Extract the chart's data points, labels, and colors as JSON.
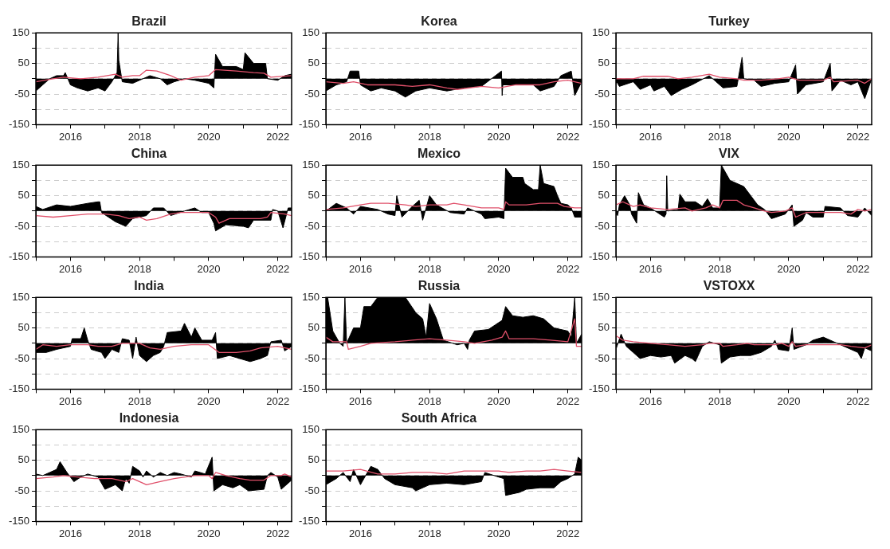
{
  "chart_data": [
    {
      "type": "area",
      "title": "Brazil",
      "xlim": [
        2015,
        2022.4
      ],
      "xticks": [
        {
          "value": 2015,
          "label": null
        },
        2016,
        {
          "value": 2017,
          "label": null
        },
        2018,
        {
          "value": 2019,
          "label": null
        },
        2020,
        {
          "value": 2021,
          "label": null
        },
        2022
      ],
      "ylim": [
        -150,
        150
      ],
      "yticks": [
        -150,
        {
          "value": -100,
          "label": null
        },
        -50,
        {
          "value": 0,
          "label": null
        },
        50,
        {
          "value": 100,
          "label": null
        },
        150
      ],
      "grid": "y",
      "marker": "none",
      "series": [
        {
          "color": "#000000",
          "x": [
            2015,
            2015.2,
            2015.4,
            2015.6,
            2015.8,
            2015.85,
            2016,
            2016.2,
            2016.5,
            2016.8,
            2017,
            2017.2,
            2017.35,
            2017.38,
            2017.4,
            2017.5,
            2017.8,
            2018,
            2018.3,
            2018.6,
            2018.8,
            2019,
            2019.3,
            2019.6,
            2020,
            2020.15,
            2020.2,
            2020.4,
            2020.8,
            2021,
            2021.05,
            2021.3,
            2021.65,
            2021.7,
            2022,
            2022.2,
            2022.4
          ],
          "values": [
            -40,
            -20,
            0,
            10,
            10,
            20,
            -20,
            -30,
            -40,
            -30,
            -40,
            -10,
            20,
            150,
            60,
            -10,
            -15,
            -5,
            10,
            0,
            -20,
            -10,
            0,
            -5,
            -15,
            -30,
            80,
            40,
            40,
            30,
            85,
            50,
            50,
            0,
            -5,
            10,
            15
          ]
        },
        {
          "type": "line",
          "color": "#e0506a",
          "x": [
            2015,
            2015.5,
            2015.8,
            2016.3,
            2016.8,
            2017.3,
            2017.5,
            2017.8,
            2018,
            2018.2,
            2018.5,
            2018.9,
            2019.2,
            2019.6,
            2020,
            2020.2,
            2020.8,
            2021.3,
            2021.6,
            2021.8,
            2022.4
          ],
          "values": [
            -10,
            0,
            5,
            0,
            5,
            15,
            5,
            10,
            10,
            28,
            25,
            10,
            -5,
            5,
            10,
            30,
            25,
            20,
            18,
            5,
            10
          ]
        }
      ]
    },
    {
      "type": "area",
      "title": "Korea",
      "xlim": [
        2015,
        2022.4
      ],
      "xticks": [
        {
          "value": 2015,
          "label": null
        },
        2016,
        {
          "value": 2017,
          "label": null
        },
        2018,
        {
          "value": 2019,
          "label": null
        },
        2020,
        {
          "value": 2021,
          "label": null
        },
        2022
      ],
      "ylim": [
        -150,
        150
      ],
      "yticks": [
        -150,
        {
          "value": -100,
          "label": null
        },
        -50,
        {
          "value": 0,
          "label": null
        },
        50,
        {
          "value": 100,
          "label": null
        },
        150
      ],
      "grid": "y",
      "marker": "none",
      "series": [
        {
          "color": "#000000",
          "x": [
            2015,
            2015.3,
            2015.6,
            2015.7,
            2015.95,
            2016,
            2016.3,
            2016.6,
            2017,
            2017.3,
            2017.6,
            2018,
            2018.5,
            2019,
            2019.5,
            2020.08,
            2020.1,
            2020.12,
            2020.5,
            2021,
            2021.2,
            2021.6,
            2021.8,
            2022.1,
            2022.2,
            2022.4
          ],
          "values": [
            -40,
            -20,
            -10,
            25,
            25,
            -20,
            -40,
            -30,
            -40,
            -60,
            -40,
            -30,
            -40,
            -30,
            -25,
            25,
            -55,
            -20,
            -20,
            -20,
            -40,
            -25,
            10,
            25,
            -55,
            -10
          ]
        },
        {
          "type": "line",
          "color": "#e0506a",
          "x": [
            2015,
            2015.5,
            2015.8,
            2016.2,
            2017,
            2017.5,
            2018,
            2018.5,
            2018.8,
            2019.5,
            2020,
            2020.5,
            2021.2,
            2021.6,
            2022,
            2022.4
          ],
          "values": [
            -10,
            -15,
            -10,
            -20,
            -20,
            -25,
            -20,
            -30,
            -35,
            -25,
            -30,
            -20,
            -20,
            -10,
            -5,
            -15
          ]
        }
      ]
    },
    {
      "type": "area",
      "title": "Turkey",
      "xlim": [
        2015,
        2022.4
      ],
      "xticks": [
        {
          "value": 2015,
          "label": null
        },
        2016,
        {
          "value": 2017,
          "label": null
        },
        2018,
        {
          "value": 2019,
          "label": null
        },
        2020,
        {
          "value": 2021,
          "label": null
        },
        2022
      ],
      "ylim": [
        -150,
        150
      ],
      "yticks": [
        -150,
        {
          "value": -100,
          "label": null
        },
        -50,
        {
          "value": 0,
          "label": null
        },
        50,
        {
          "value": 100,
          "label": null
        },
        150
      ],
      "grid": "y",
      "marker": "none",
      "series": [
        {
          "color": "#000000",
          "x": [
            2015,
            2015.1,
            2015.5,
            2015.7,
            2016,
            2016.1,
            2016.4,
            2016.6,
            2016.9,
            2017.2,
            2017.7,
            2017.9,
            2018.1,
            2018.5,
            2018.65,
            2018.7,
            2019,
            2019.2,
            2019.6,
            2020,
            2020.2,
            2020.25,
            2020.5,
            2021,
            2021.2,
            2021.25,
            2021.5,
            2021.8,
            2022,
            2022.2,
            2022.4
          ],
          "values": [
            -5,
            -25,
            -10,
            -35,
            -20,
            -40,
            -25,
            -55,
            -35,
            -20,
            10,
            -10,
            -30,
            -25,
            70,
            0,
            -5,
            -25,
            -15,
            -10,
            45,
            -50,
            -20,
            -10,
            50,
            -40,
            -5,
            -20,
            -10,
            -65,
            0
          ]
        },
        {
          "type": "line",
          "color": "#e0506a",
          "x": [
            2015,
            2015.5,
            2015.8,
            2016.5,
            2016.8,
            2017.2,
            2017.7,
            2018,
            2018.5,
            2018.7,
            2019.2,
            2019.7,
            2020,
            2020.3,
            2021,
            2021.2,
            2021.3,
            2022,
            2022.2,
            2022.4
          ],
          "values": [
            0,
            0,
            8,
            8,
            0,
            5,
            15,
            5,
            0,
            -5,
            -5,
            0,
            5,
            -5,
            -5,
            5,
            -10,
            -5,
            -15,
            0
          ]
        }
      ]
    },
    {
      "type": "area",
      "title": "China",
      "xlim": [
        2015,
        2022.4
      ],
      "xticks": [
        {
          "value": 2015,
          "label": null
        },
        2016,
        {
          "value": 2017,
          "label": null
        },
        2018,
        {
          "value": 2019,
          "label": null
        },
        2020,
        {
          "value": 2021,
          "label": null
        },
        2022
      ],
      "ylim": [
        -150,
        150
      ],
      "yticks": [
        -150,
        {
          "value": -100,
          "label": null
        },
        -50,
        {
          "value": 0,
          "label": null
        },
        50,
        {
          "value": 100,
          "label": null
        },
        150
      ],
      "grid": "y",
      "marker": "none",
      "series": [
        {
          "color": "#000000",
          "x": [
            2015,
            2015.2,
            2015.6,
            2016,
            2016.5,
            2016.8,
            2016.85,
            2016.9,
            2017.1,
            2017.3,
            2017.6,
            2017.8,
            2018.2,
            2018.4,
            2018.7,
            2018.9,
            2019.3,
            2019.6,
            2019.8,
            2020,
            2020.15,
            2020.2,
            2020.5,
            2021,
            2021.15,
            2021.3,
            2021.8,
            2021.85,
            2022,
            2022.15,
            2022.3,
            2022.4
          ],
          "values": [
            15,
            5,
            20,
            15,
            25,
            30,
            30,
            -5,
            -20,
            -35,
            -50,
            -25,
            -15,
            10,
            10,
            -15,
            0,
            10,
            -5,
            -5,
            -40,
            -65,
            -45,
            -50,
            -55,
            -30,
            -30,
            5,
            0,
            -55,
            10,
            10
          ]
        },
        {
          "type": "line",
          "color": "#e0506a",
          "x": [
            2015,
            2015.5,
            2016,
            2016.5,
            2017,
            2017.4,
            2017.7,
            2018,
            2018.2,
            2018.5,
            2018.9,
            2019.2,
            2019.8,
            2020,
            2020.2,
            2020.3,
            2020.6,
            2021.5,
            2021.7,
            2021.8,
            2022.2,
            2022.4
          ],
          "values": [
            -15,
            -20,
            -15,
            -10,
            -10,
            -15,
            -25,
            -20,
            -30,
            -25,
            -10,
            -5,
            -5,
            -5,
            -20,
            -40,
            -25,
            -25,
            -20,
            -5,
            -10,
            -15
          ]
        }
      ]
    },
    {
      "type": "area",
      "title": "Mexico",
      "xlim": [
        2015,
        2022.4
      ],
      "xticks": [
        {
          "value": 2015,
          "label": null
        },
        2016,
        {
          "value": 2017,
          "label": null
        },
        2018,
        {
          "value": 2019,
          "label": null
        },
        2020,
        {
          "value": 2021,
          "label": null
        },
        2022
      ],
      "ylim": [
        -150,
        150
      ],
      "yticks": [
        -150,
        {
          "value": -100,
          "label": null
        },
        -50,
        {
          "value": 0,
          "label": null
        },
        50,
        {
          "value": 100,
          "label": null
        },
        150
      ],
      "grid": "y",
      "marker": "none",
      "series": [
        {
          "color": "#000000",
          "x": [
            2015,
            2015.3,
            2015.6,
            2015.8,
            2016,
            2016.5,
            2016.8,
            2017,
            2017.05,
            2017.2,
            2017.5,
            2017.7,
            2017.8,
            2017.9,
            2018,
            2018.2,
            2018.6,
            2019,
            2019.1,
            2019.5,
            2019.6,
            2020,
            2020.15,
            2020.2,
            2020.4,
            2020.7,
            2020.75,
            2021,
            2021.15,
            2021.2,
            2021.3,
            2021.6,
            2021.7,
            2021.8,
            2022,
            2022.1,
            2022.2,
            2022.4
          ],
          "values": [
            0,
            25,
            10,
            -10,
            15,
            5,
            -10,
            -15,
            50,
            -20,
            15,
            35,
            -30,
            10,
            50,
            20,
            -5,
            -10,
            10,
            -10,
            -25,
            -20,
            -25,
            140,
            110,
            110,
            90,
            70,
            70,
            150,
            90,
            80,
            50,
            25,
            20,
            10,
            -20,
            -20
          ]
        },
        {
          "type": "line",
          "color": "#e0506a",
          "x": [
            2015,
            2015.5,
            2016,
            2016.3,
            2016.8,
            2017.3,
            2017.6,
            2018,
            2018.5,
            2018.7,
            2019,
            2019.5,
            2020,
            2020.15,
            2020.2,
            2020.3,
            2020.8,
            2021.2,
            2021.7,
            2021.9,
            2022.2,
            2022.4
          ],
          "values": [
            5,
            10,
            20,
            25,
            25,
            20,
            15,
            20,
            20,
            25,
            20,
            10,
            10,
            5,
            30,
            20,
            20,
            25,
            25,
            15,
            10,
            10
          ]
        }
      ]
    },
    {
      "type": "area",
      "title": "VIX",
      "xlim": [
        2015,
        2022.4
      ],
      "xticks": [
        {
          "value": 2015,
          "label": null
        },
        2016,
        {
          "value": 2017,
          "label": null
        },
        2018,
        {
          "value": 2019,
          "label": null
        },
        2020,
        {
          "value": 2021,
          "label": null
        },
        2022
      ],
      "ylim": [
        -150,
        150
      ],
      "yticks": [
        -150,
        {
          "value": -100,
          "label": null
        },
        -50,
        {
          "value": 0,
          "label": null
        },
        50,
        {
          "value": 100,
          "label": null
        },
        150
      ],
      "grid": "y",
      "marker": "none",
      "series": [
        {
          "color": "#000000",
          "x": [
            2015,
            2015.05,
            2015.1,
            2015.25,
            2015.4,
            2015.45,
            2015.6,
            2015.65,
            2015.8,
            2016,
            2016.2,
            2016.4,
            2016.45,
            2016.47,
            2016.5,
            2016.8,
            2016.85,
            2017,
            2017.3,
            2017.5,
            2017.65,
            2017.8,
            2018,
            2018.05,
            2018.3,
            2018.7,
            2018.9,
            2019.1,
            2019.3,
            2019.4,
            2019.5,
            2019.9,
            2020.1,
            2020.15,
            2020.4,
            2020.5,
            2020.7,
            2021,
            2021.05,
            2021.5,
            2021.7,
            2022,
            2022.2,
            2022.4
          ],
          "values": [
            0,
            -15,
            20,
            50,
            20,
            -10,
            -40,
            60,
            20,
            10,
            -5,
            -20,
            -10,
            115,
            0,
            5,
            55,
            30,
            30,
            15,
            40,
            10,
            10,
            150,
            100,
            80,
            50,
            20,
            5,
            -10,
            -25,
            -10,
            20,
            -50,
            -30,
            -5,
            -20,
            -20,
            15,
            10,
            -15,
            -20,
            10,
            -15
          ]
        },
        {
          "type": "line",
          "color": "#e0506a",
          "x": [
            2015,
            2015.2,
            2015.5,
            2015.7,
            2016,
            2016.5,
            2017,
            2017.2,
            2017.6,
            2017.8,
            2018,
            2018.1,
            2018.5,
            2018.7,
            2019,
            2019.3,
            2019.5,
            2019.9,
            2020.1,
            2020.2,
            2020.5,
            2021,
            2021.5,
            2021.8,
            2022,
            2022.2,
            2022.4
          ],
          "values": [
            20,
            30,
            15,
            20,
            10,
            5,
            10,
            0,
            10,
            20,
            10,
            35,
            35,
            20,
            10,
            0,
            -5,
            0,
            10,
            -20,
            -5,
            -5,
            -5,
            -10,
            5,
            0,
            5
          ]
        }
      ]
    },
    {
      "type": "area",
      "title": "India",
      "xlim": [
        2015,
        2022.4
      ],
      "xticks": [
        {
          "value": 2015,
          "label": null
        },
        2016,
        {
          "value": 2017,
          "label": null
        },
        2018,
        {
          "value": 2019,
          "label": null
        },
        2020,
        {
          "value": 2021,
          "label": null
        },
        2022
      ],
      "ylim": [
        -150,
        150
      ],
      "yticks": [
        -150,
        {
          "value": -100,
          "label": null
        },
        -50,
        {
          "value": 0,
          "label": null
        },
        50,
        {
          "value": 100,
          "label": null
        },
        150
      ],
      "grid": "y",
      "marker": "none",
      "series": [
        {
          "color": "#000000",
          "x": [
            2015,
            2015.3,
            2015.6,
            2016,
            2016.05,
            2016.3,
            2016.4,
            2016.5,
            2016.6,
            2016.9,
            2017,
            2017.2,
            2017.4,
            2017.5,
            2017.7,
            2017.8,
            2017.9,
            2018,
            2018.2,
            2018.4,
            2018.6,
            2018.7,
            2018.8,
            2019.2,
            2019.3,
            2019.5,
            2019.6,
            2019.8,
            2020.1,
            2020.2,
            2020.25,
            2020.6,
            2020.9,
            2021.2,
            2021.5,
            2021.7,
            2021.8,
            2022.1,
            2022.2,
            2022.4
          ],
          "values": [
            -30,
            -30,
            -20,
            -10,
            15,
            15,
            50,
            10,
            -20,
            -30,
            -50,
            -20,
            -30,
            15,
            10,
            -50,
            20,
            -40,
            -60,
            -40,
            -30,
            -10,
            35,
            40,
            65,
            20,
            50,
            10,
            10,
            35,
            -50,
            -40,
            -50,
            -60,
            -50,
            -40,
            5,
            10,
            -25,
            -10
          ]
        },
        {
          "type": "line",
          "color": "#e0506a",
          "x": [
            2015,
            2015.2,
            2015.6,
            2016,
            2016.5,
            2016.8,
            2017.2,
            2017.5,
            2018,
            2018.3,
            2018.6,
            2019,
            2019.5,
            2020,
            2020.3,
            2020.8,
            2021.2,
            2021.5,
            2022,
            2022.4
          ],
          "values": [
            -20,
            -5,
            -10,
            -5,
            -5,
            -10,
            -10,
            0,
            0,
            -15,
            -20,
            -10,
            -5,
            -5,
            -30,
            -30,
            -25,
            -15,
            -10,
            -20
          ]
        }
      ]
    },
    {
      "type": "area",
      "title": "Russia",
      "xlim": [
        2015,
        2022.4
      ],
      "xticks": [
        {
          "value": 2015,
          "label": null
        },
        2016,
        {
          "value": 2017,
          "label": null
        },
        2018,
        {
          "value": 2019,
          "label": null
        },
        2020,
        {
          "value": 2021,
          "label": null
        },
        2022
      ],
      "ylim": [
        -150,
        150
      ],
      "yticks": [
        -150,
        {
          "value": -100,
          "label": null
        },
        -50,
        {
          "value": 0,
          "label": null
        },
        50,
        {
          "value": 100,
          "label": null
        },
        150
      ],
      "grid": "y",
      "marker": "none",
      "series": [
        {
          "color": "#000000",
          "x": [
            2015,
            2015.05,
            2015.2,
            2015.4,
            2015.5,
            2015.55,
            2015.6,
            2015.8,
            2016,
            2016.1,
            2016.3,
            2016.5,
            2017.3,
            2017.6,
            2017.8,
            2017.9,
            2018,
            2018.2,
            2018.4,
            2018.8,
            2019,
            2019.1,
            2019.15,
            2019.3,
            2019.7,
            2019.9,
            2020.1,
            2020.2,
            2020.4,
            2020.7,
            2021,
            2021.3,
            2021.6,
            2022,
            2022.1,
            2022.2,
            2022.25,
            2022.4
          ],
          "values": [
            150,
            150,
            40,
            0,
            -10,
            150,
            0,
            50,
            50,
            120,
            120,
            150,
            150,
            100,
            80,
            20,
            130,
            80,
            10,
            -5,
            0,
            -20,
            10,
            40,
            45,
            60,
            75,
            120,
            90,
            85,
            90,
            80,
            50,
            40,
            20,
            150,
            0,
            30
          ]
        },
        {
          "type": "line",
          "color": "#e0506a",
          "x": [
            2015,
            2015.2,
            2015.6,
            2015.65,
            2016,
            2016.3,
            2017,
            2017.5,
            2018,
            2018.5,
            2019,
            2019.3,
            2019.8,
            2020.1,
            2020.2,
            2020.3,
            2021,
            2021.5,
            2022,
            2022.2,
            2022.25,
            2022.4
          ],
          "values": [
            20,
            5,
            5,
            -20,
            -10,
            0,
            5,
            10,
            15,
            10,
            5,
            0,
            10,
            20,
            40,
            15,
            15,
            10,
            5,
            80,
            -10,
            -10
          ]
        }
      ]
    },
    {
      "type": "area",
      "title": "VSTOXX",
      "xlim": [
        2015,
        2022.4
      ],
      "xticks": [
        {
          "value": 2015,
          "label": null
        },
        2016,
        {
          "value": 2017,
          "label": null
        },
        2018,
        {
          "value": 2019,
          "label": null
        },
        2020,
        {
          "value": 2021,
          "label": null
        },
        2022
      ],
      "ylim": [
        -150,
        150
      ],
      "yticks": [
        -150,
        {
          "value": -100,
          "label": null
        },
        -50,
        {
          "value": 0,
          "label": null
        },
        50,
        {
          "value": 100,
          "label": null
        },
        150
      ],
      "grid": "y",
      "marker": "none",
      "series": [
        {
          "color": "#000000",
          "x": [
            2015,
            2015.15,
            2015.3,
            2015.5,
            2015.7,
            2016,
            2016.3,
            2016.6,
            2016.7,
            2017,
            2017.2,
            2017.3,
            2017.5,
            2017.7,
            2018,
            2018.05,
            2018.3,
            2018.6,
            2018.9,
            2019.2,
            2019.5,
            2019.6,
            2019.7,
            2020,
            2020.1,
            2020.15,
            2020.5,
            2020.7,
            2021,
            2021.3,
            2021.5,
            2021.8,
            2022,
            2022.1,
            2022.2,
            2022.4
          ],
          "values": [
            -20,
            30,
            -10,
            -30,
            -50,
            -40,
            -45,
            -40,
            -65,
            -40,
            -50,
            -60,
            -10,
            5,
            -5,
            -65,
            -45,
            -40,
            -40,
            -30,
            -10,
            10,
            -20,
            -25,
            50,
            -20,
            -5,
            10,
            20,
            5,
            -5,
            -20,
            -30,
            -50,
            -15,
            -25
          ]
        },
        {
          "type": "line",
          "color": "#e0506a",
          "x": [
            2015,
            2015.2,
            2015.5,
            2016,
            2016.5,
            2017,
            2017.5,
            2017.7,
            2018,
            2018.1,
            2018.5,
            2018.8,
            2019,
            2019.6,
            2019.8,
            2020,
            2020.1,
            2020.2,
            2020.5,
            2021,
            2021.5,
            2021.8,
            2022.2,
            2022.4
          ],
          "values": [
            25,
            10,
            5,
            0,
            -5,
            -10,
            -5,
            0,
            0,
            -10,
            -5,
            0,
            -5,
            -5,
            0,
            -10,
            5,
            -10,
            -5,
            -5,
            -5,
            -10,
            -15,
            -5
          ]
        }
      ]
    },
    {
      "type": "area",
      "title": "Indonesia",
      "xlim": [
        2015,
        2022.4
      ],
      "xticks": [
        {
          "value": 2015,
          "label": null
        },
        2016,
        {
          "value": 2017,
          "label": null
        },
        2018,
        {
          "value": 2019,
          "label": null
        },
        2020,
        {
          "value": 2021,
          "label": null
        },
        2022
      ],
      "ylim": [
        -150,
        150
      ],
      "yticks": [
        -150,
        {
          "value": -100,
          "label": null
        },
        -50,
        {
          "value": 0,
          "label": null
        },
        50,
        {
          "value": 100,
          "label": null
        },
        150
      ],
      "grid": "y",
      "marker": "none",
      "series": [
        {
          "color": "#000000",
          "x": [
            2015,
            2015.2,
            2015.4,
            2015.6,
            2015.7,
            2015.9,
            2016.1,
            2016.3,
            2016.5,
            2016.8,
            2017,
            2017.3,
            2017.5,
            2017.6,
            2017.7,
            2017.8,
            2018,
            2018.1,
            2018.2,
            2018.4,
            2018.6,
            2018.8,
            2019,
            2019.2,
            2019.5,
            2019.6,
            2019.9,
            2020.1,
            2020.15,
            2020.4,
            2020.7,
            2020.9,
            2021.15,
            2021.6,
            2021.7,
            2021.8,
            2022,
            2022.1,
            2022.4
          ],
          "values": [
            5,
            0,
            10,
            20,
            45,
            10,
            -20,
            -5,
            5,
            -5,
            -45,
            -30,
            -50,
            -10,
            -25,
            30,
            15,
            -5,
            15,
            -5,
            10,
            0,
            10,
            5,
            -5,
            15,
            5,
            60,
            -50,
            -30,
            -40,
            -30,
            -50,
            -45,
            0,
            10,
            -5,
            -45,
            -15
          ]
        },
        {
          "type": "line",
          "color": "#e0506a",
          "x": [
            2015,
            2015.5,
            2015.8,
            2016.2,
            2016.7,
            2017.2,
            2017.6,
            2017.8,
            2018.1,
            2018.2,
            2018.6,
            2019,
            2019.6,
            2020,
            2020.1,
            2020.2,
            2020.5,
            2020.9,
            2021.2,
            2021.6,
            2021.8,
            2022.1,
            2022.2,
            2022.4
          ],
          "values": [
            -10,
            -5,
            0,
            -5,
            -10,
            -10,
            -20,
            -10,
            -25,
            -30,
            -20,
            -10,
            0,
            0,
            -10,
            10,
            0,
            -10,
            -15,
            -15,
            0,
            0,
            5,
            -5
          ]
        }
      ]
    },
    {
      "type": "area",
      "title": "South Africa",
      "xlim": [
        2015,
        2022.4
      ],
      "xticks": [
        {
          "value": 2015,
          "label": null
        },
        2016,
        {
          "value": 2017,
          "label": null
        },
        2018,
        {
          "value": 2019,
          "label": null
        },
        2020,
        {
          "value": 2021,
          "label": null
        },
        2022
      ],
      "ylim": [
        -150,
        150
      ],
      "yticks": [
        -150,
        {
          "value": -100,
          "label": null
        },
        -50,
        {
          "value": 0,
          "label": null
        },
        50,
        {
          "value": 100,
          "label": null
        },
        150
      ],
      "grid": "y",
      "marker": "none",
      "series": [
        {
          "color": "#000000",
          "x": [
            2015,
            2015.3,
            2015.5,
            2015.7,
            2015.8,
            2016,
            2016.3,
            2016.5,
            2016.7,
            2017,
            2017.5,
            2017.6,
            2018,
            2018.5,
            2019,
            2019.5,
            2019.6,
            2020,
            2020.15,
            2020.2,
            2020.6,
            2020.8,
            2021.2,
            2021.6,
            2021.8,
            2022,
            2022.2,
            2022.3,
            2022.4
          ],
          "values": [
            -30,
            -10,
            10,
            -20,
            20,
            -30,
            30,
            20,
            -10,
            -30,
            -40,
            -50,
            -30,
            -25,
            -30,
            -20,
            10,
            -5,
            -10,
            -65,
            -55,
            -45,
            -40,
            -40,
            -20,
            -10,
            5,
            60,
            50
          ]
        },
        {
          "type": "line",
          "color": "#e0506a",
          "x": [
            2015,
            2015.5,
            2016,
            2016.5,
            2017,
            2017.5,
            2018,
            2018.5,
            2019,
            2019.5,
            2020,
            2020.3,
            2020.8,
            2021.2,
            2021.6,
            2022,
            2022.4
          ],
          "values": [
            15,
            15,
            20,
            5,
            5,
            10,
            10,
            5,
            15,
            15,
            15,
            10,
            15,
            15,
            20,
            15,
            10
          ]
        }
      ]
    }
  ]
}
